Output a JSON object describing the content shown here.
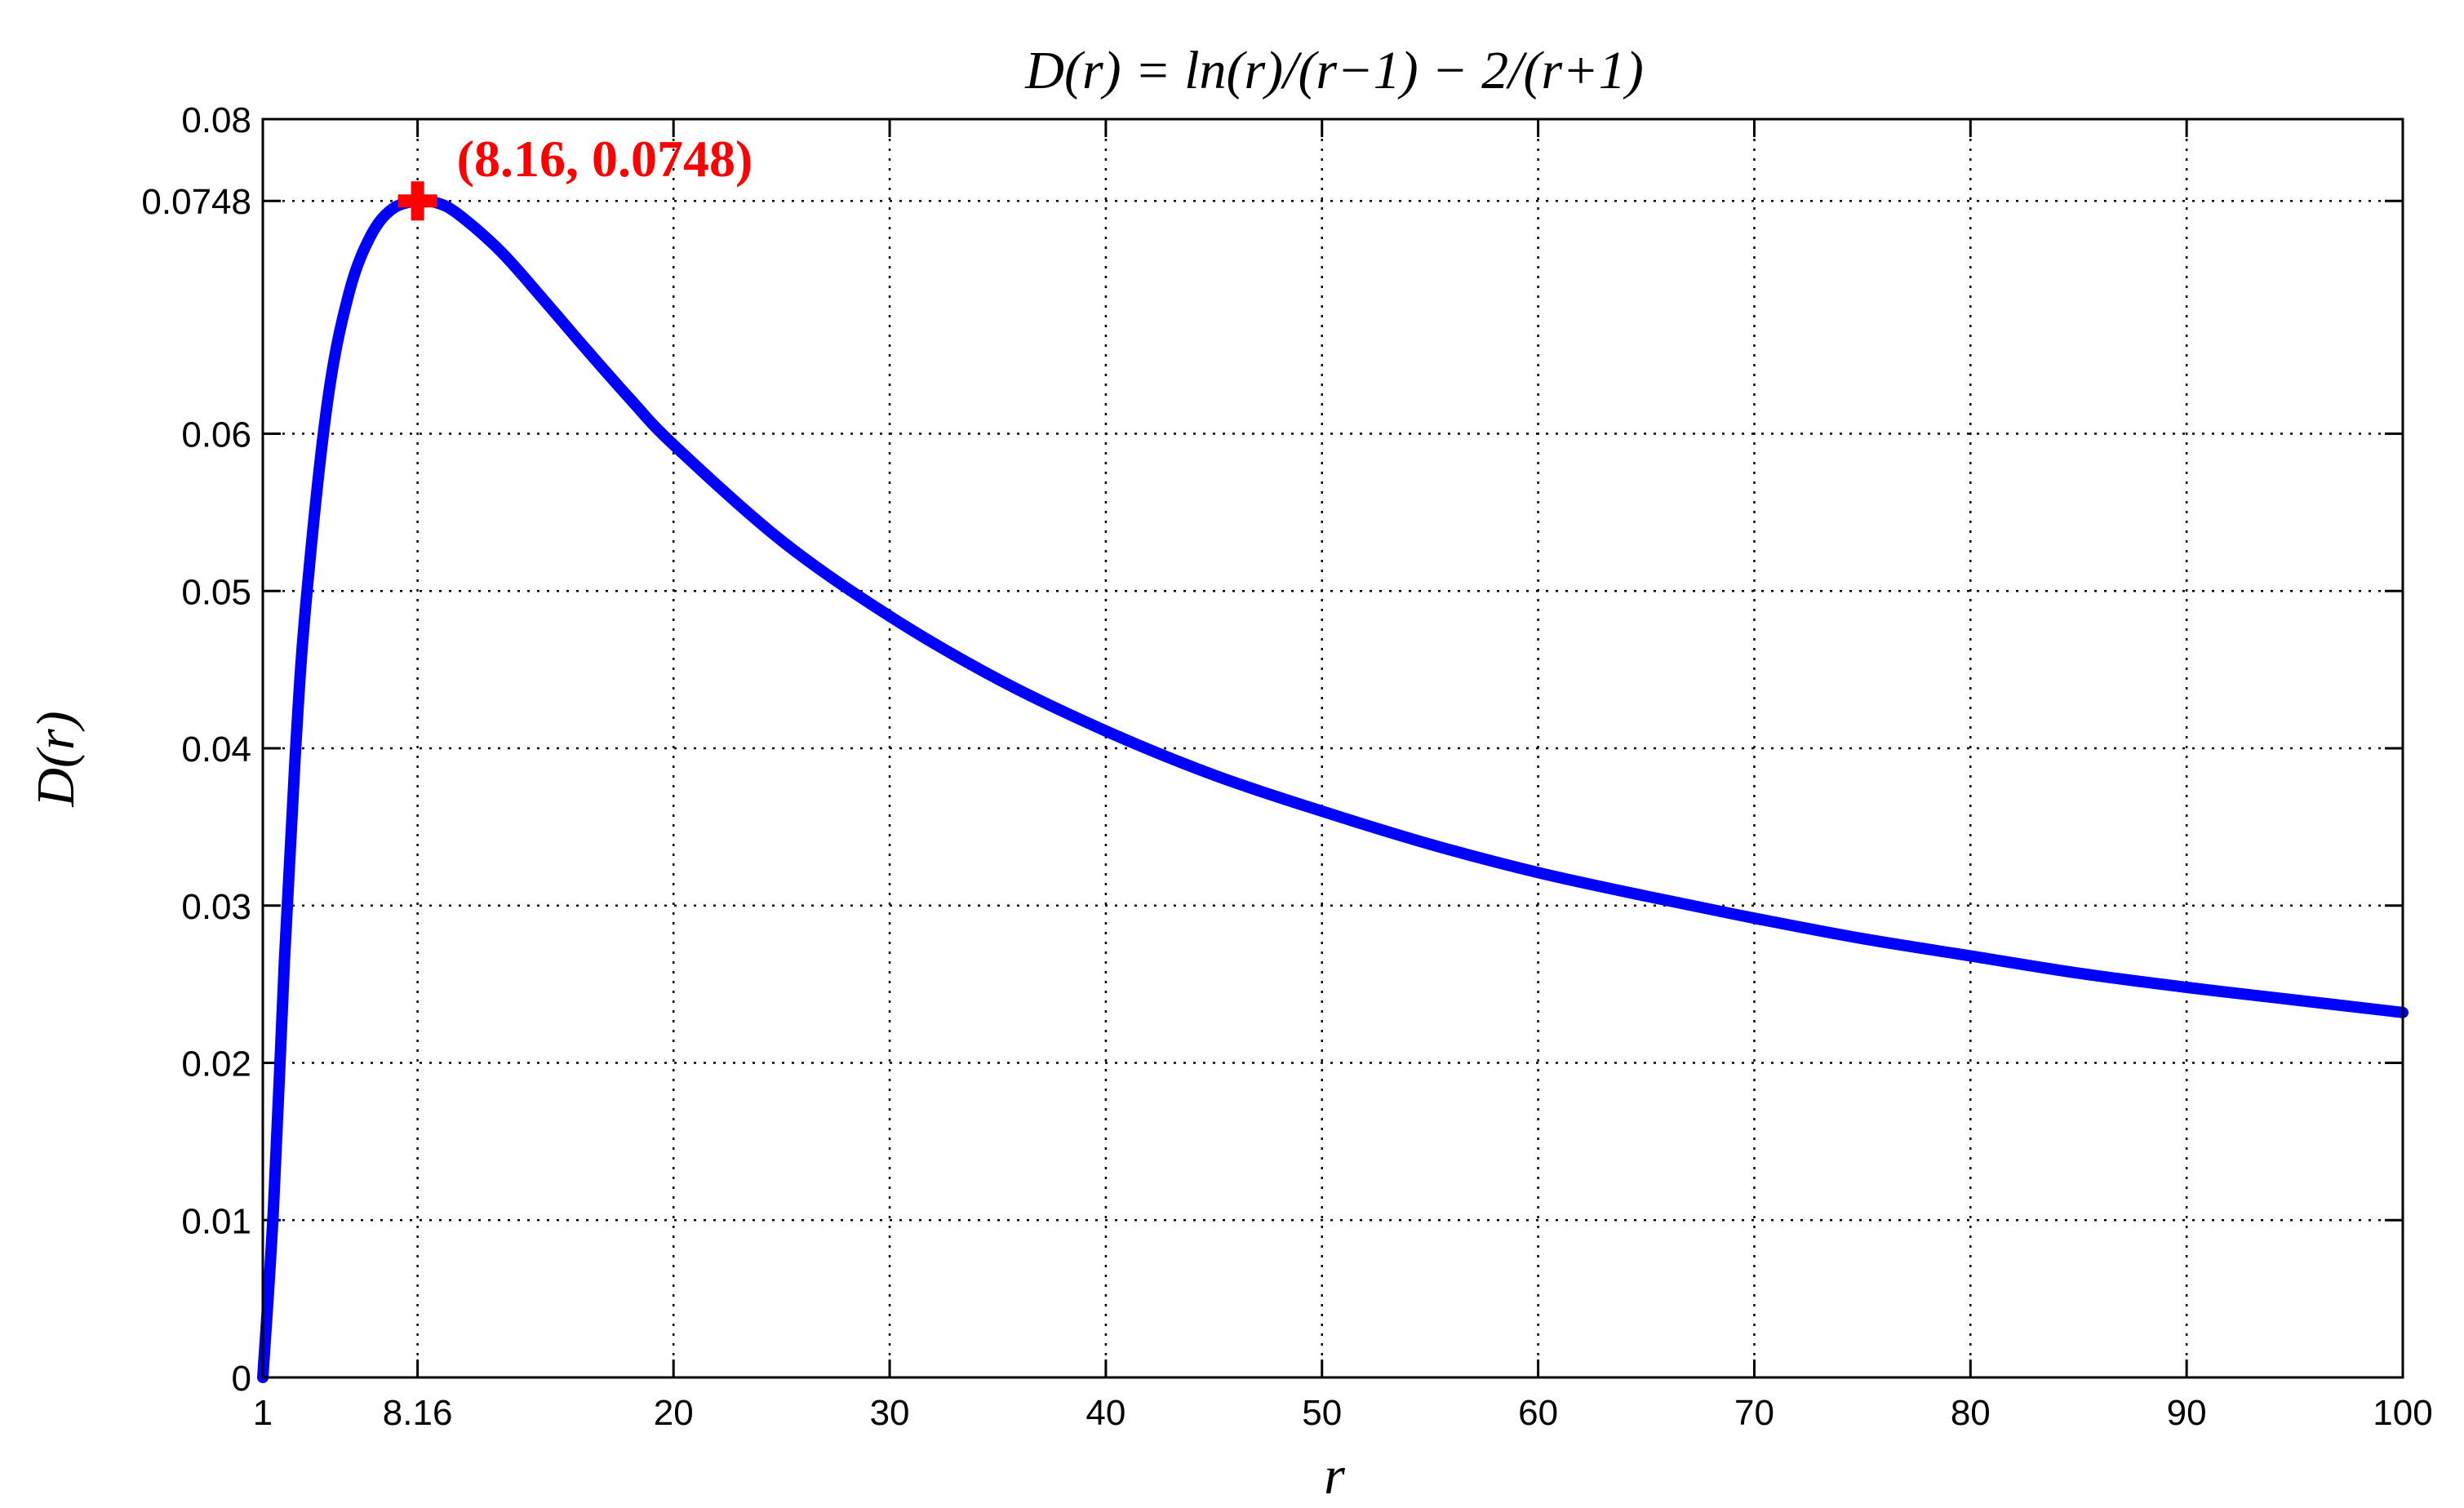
{
  "chart_data": {
    "type": "line",
    "title": "D(r) = ln(r)/(r−1) − 2/(r+1)",
    "xlabel": "r",
    "ylabel": "D(r)",
    "xlim": [
      1,
      100
    ],
    "ylim": [
      0,
      0.08
    ],
    "grid": true,
    "grid_style": "dotted",
    "x_ticks": [
      1,
      8.16,
      20,
      30,
      40,
      50,
      60,
      70,
      80,
      90,
      100
    ],
    "x_tick_labels": [
      "1",
      "8.16",
      "20",
      "30",
      "40",
      "50",
      "60",
      "70",
      "80",
      "90",
      "100"
    ],
    "y_ticks": [
      0,
      0.01,
      0.02,
      0.03,
      0.04,
      0.05,
      0.06,
      0.0748,
      0.08
    ],
    "y_tick_labels": [
      "0",
      "0.01",
      "0.02",
      "0.03",
      "0.04",
      "0.05",
      "0.06",
      "0.0748",
      "0.08"
    ],
    "series": [
      {
        "color": "#0000ff",
        "x": [
          1,
          1.5,
          2,
          2.5,
          3,
          4,
          5,
          6,
          7,
          8.16,
          9,
          10,
          12,
          14,
          16,
          18,
          20,
          25,
          30,
          35,
          40,
          45,
          50,
          55,
          60,
          65,
          70,
          75,
          80,
          85,
          90,
          95,
          100
        ],
        "y": [
          0,
          0.0109,
          0.0265,
          0.0395,
          0.0493,
          0.0621,
          0.069,
          0.0726,
          0.0743,
          0.0748,
          0.0747,
          0.074,
          0.0716,
          0.0685,
          0.0653,
          0.0622,
          0.0593,
          0.0532,
          0.0484,
          0.0444,
          0.0411,
          0.0383,
          0.036,
          0.0339,
          0.0321,
          0.0306,
          0.0292,
          0.0279,
          0.0268,
          0.0257,
          0.0248,
          0.024,
          0.0232
        ]
      }
    ],
    "marker": {
      "x": 8.16,
      "y": 0.0748,
      "color": "#ff0000",
      "label": "(8.16, 0.0748)"
    }
  }
}
